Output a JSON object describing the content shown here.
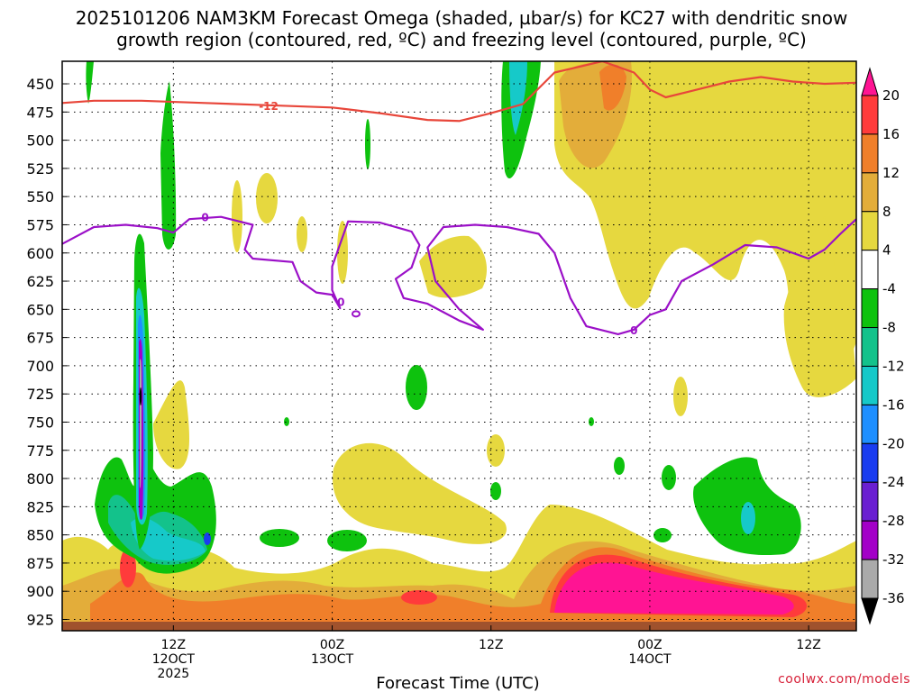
{
  "title_line1": "2025101206 NAM3KM Forecast Omega (shaded, µbar/s) for KC27 with dendritic snow",
  "title_line2": "growth region (contoured, red, ºC) and freezing level (contoured, purple, ºC)",
  "credit": "coolwx.com/models",
  "chart_data": {
    "type": "heatmap",
    "xlabel": "Forecast Time (UTC)",
    "x_range_hours": [
      -7,
      43
    ],
    "x_ticks": [
      {
        "hour": 0,
        "lines": [
          "12Z",
          "12OCT",
          "2025"
        ]
      },
      {
        "hour": 10,
        "lines": [
          "00Z",
          "13OCT"
        ]
      },
      {
        "hour": 20,
        "lines": [
          "12Z"
        ]
      },
      {
        "hour": 30,
        "lines": [
          "00Z",
          "14OCT"
        ]
      },
      {
        "hour": 40,
        "lines": [
          "12Z"
        ]
      }
    ],
    "y_axis": "pressure (mb), inverted",
    "ylim": [
      935,
      430
    ],
    "y_ticks": [
      450,
      475,
      500,
      525,
      550,
      575,
      600,
      625,
      650,
      675,
      700,
      725,
      750,
      775,
      800,
      825,
      850,
      875,
      900,
      925
    ],
    "grid": true,
    "colorbar": {
      "labels": [
        "20",
        "16",
        "12",
        "8",
        "4",
        "-4",
        "-8",
        "-12",
        "-16",
        "-20",
        "-24",
        "-28",
        "-32",
        "-36"
      ],
      "bins": [
        {
          "range": [
            20,
            null
          ],
          "color": "#ff1493"
        },
        {
          "range": [
            16,
            20
          ],
          "color": "#ff3b3b"
        },
        {
          "range": [
            12,
            16
          ],
          "color": "#f07f2a"
        },
        {
          "range": [
            8,
            12
          ],
          "color": "#e3ad3a"
        },
        {
          "range": [
            4,
            8
          ],
          "color": "#e6d83f"
        },
        {
          "range": [
            -4,
            4
          ],
          "color": "#ffffff"
        },
        {
          "range": [
            -8,
            -4
          ],
          "color": "#0ec20e"
        },
        {
          "range": [
            -12,
            -8
          ],
          "color": "#13c28b"
        },
        {
          "range": [
            -16,
            -12
          ],
          "color": "#16c9c9"
        },
        {
          "range": [
            -20,
            -16
          ],
          "color": "#1e8fff"
        },
        {
          "range": [
            -24,
            -20
          ],
          "color": "#1a3cf0"
        },
        {
          "range": [
            -28,
            -24
          ],
          "color": "#6a1fd1"
        },
        {
          "range": [
            -32,
            -28
          ],
          "color": "#a300c8"
        },
        {
          "range": [
            -36,
            -32
          ],
          "color": "#aaaaaa"
        },
        {
          "range": [
            null,
            -36
          ],
          "color": "#000000"
        }
      ]
    },
    "contour_minus12": {
      "label": "-12",
      "color": "#e8463a",
      "points": [
        [
          -7,
          467
        ],
        [
          -5,
          465
        ],
        [
          -2,
          465
        ],
        [
          2,
          467
        ],
        [
          6,
          469
        ],
        [
          10,
          471
        ],
        [
          13,
          476
        ],
        [
          16,
          482
        ],
        [
          18,
          483
        ],
        [
          20,
          476
        ],
        [
          22,
          468
        ],
        [
          24,
          440
        ],
        [
          27,
          430
        ],
        [
          29,
          440
        ],
        [
          30,
          455
        ],
        [
          31,
          462
        ],
        [
          33,
          455
        ],
        [
          35,
          448
        ],
        [
          37,
          444
        ],
        [
          39,
          448
        ],
        [
          41,
          450
        ],
        [
          43,
          449
        ]
      ]
    },
    "contour_freezing": {
      "label": "0",
      "color": "#9b10c8",
      "points": [
        [
          -7,
          592
        ],
        [
          -5,
          577
        ],
        [
          -3,
          575
        ],
        [
          -1,
          578
        ],
        [
          0,
          582
        ],
        [
          1,
          570
        ],
        [
          3,
          568
        ],
        [
          5,
          575
        ],
        [
          4.5,
          597
        ],
        [
          5,
          605
        ],
        [
          7.5,
          608
        ],
        [
          8,
          625
        ],
        [
          9,
          635
        ],
        [
          10,
          637
        ],
        [
          10.5,
          649
        ],
        [
          10,
          633
        ],
        [
          10,
          612
        ],
        [
          11,
          572
        ],
        [
          13,
          573
        ],
        [
          15,
          581
        ],
        [
          15.5,
          593
        ],
        [
          15,
          613
        ],
        [
          14,
          623
        ],
        [
          14.5,
          640
        ],
        [
          16,
          645
        ],
        [
          18,
          660
        ],
        [
          19.5,
          668
        ],
        [
          18,
          650
        ],
        [
          16.5,
          625
        ],
        [
          16,
          595
        ],
        [
          17,
          577
        ],
        [
          19,
          575
        ],
        [
          21,
          577
        ],
        [
          23,
          583
        ],
        [
          24,
          600
        ],
        [
          25,
          640
        ],
        [
          26,
          665
        ],
        [
          28,
          672
        ],
        [
          29,
          668
        ],
        [
          30,
          655
        ],
        [
          31,
          650
        ],
        [
          32,
          625
        ],
        [
          34,
          610
        ],
        [
          36,
          593
        ],
        [
          38,
          595
        ],
        [
          40,
          605
        ],
        [
          41,
          597
        ],
        [
          42,
          583
        ],
        [
          43,
          570
        ]
      ],
      "small_loop": {
        "center": [
          11.5,
          654
        ]
      }
    },
    "ground_band_mb": [
      927,
      935
    ]
  }
}
